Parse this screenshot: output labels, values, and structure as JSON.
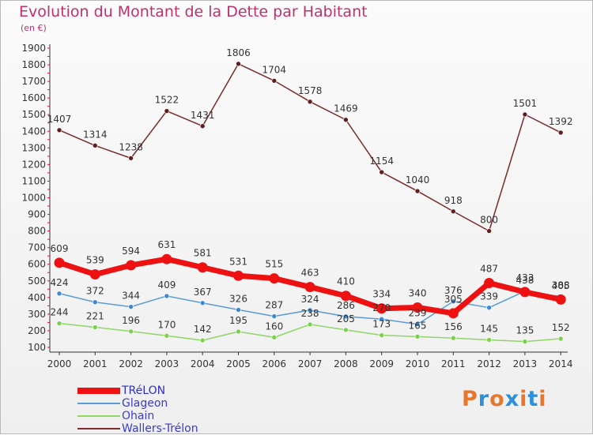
{
  "title": "Evolution du Montant de la Dette par Habitant",
  "unit": "(en €)",
  "logo": {
    "text": "Proxiti",
    "colors": [
      "#e8762c",
      "#2f8fd8",
      "#e8762c",
      "#2f8fd8",
      "#e8762c",
      "#2f8fd8",
      "#e8762c"
    ]
  },
  "chart_data": {
    "type": "line",
    "title": "Evolution du Montant de la Dette par Habitant",
    "ylabel": "(en €)",
    "ylim": [
      100,
      1900
    ],
    "yticks": [
      100,
      200,
      300,
      400,
      500,
      600,
      700,
      800,
      900,
      1000,
      1100,
      1200,
      1300,
      1400,
      1500,
      1600,
      1700,
      1800,
      1900
    ],
    "x": [
      "2000",
      "2001",
      "2002",
      "2003",
      "2004",
      "2005",
      "2006",
      "2007",
      "2008",
      "2009",
      "2010",
      "2011",
      "2012",
      "2013",
      "2014"
    ],
    "grid": false,
    "legend_position": "bottom-left",
    "series": [
      {
        "name": "Wallers-Trélon",
        "color": "#7a2a2a",
        "values": [
          1407,
          1314,
          1238,
          1522,
          1431,
          1806,
          1704,
          1578,
          1469,
          1154,
          1040,
          918,
          800,
          1501,
          1392
        ]
      },
      {
        "name": "Ohain",
        "color": "#8fd665",
        "values": [
          244,
          221,
          196,
          170,
          142,
          195,
          160,
          238,
          205,
          173,
          165,
          156,
          145,
          135,
          152
        ]
      },
      {
        "name": "Glageon",
        "color": "#5b9bd5",
        "values": [
          424,
          372,
          344,
          409,
          367,
          326,
          287,
          324,
          286,
          270,
          239,
          376,
          339,
          438,
          405
        ]
      },
      {
        "name": "TRéLON",
        "color": "#ee1111",
        "values": [
          609,
          539,
          594,
          631,
          581,
          531,
          515,
          463,
          410,
          334,
          340,
          305,
          487,
          433,
          388
        ]
      }
    ],
    "legend_order": [
      "TRéLON",
      "Glageon",
      "Ohain",
      "Wallers-Trélon"
    ]
  }
}
